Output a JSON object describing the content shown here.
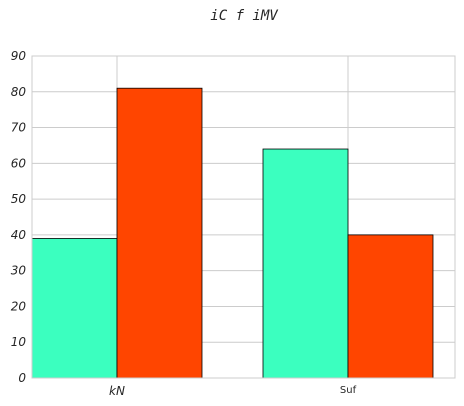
{
  "chart_data": {
    "type": "bar",
    "title": "iC f  iMV",
    "xlabel": "",
    "ylabel": "",
    "categories": [
      "kN",
      "Suf"
    ],
    "series": [
      {
        "values": [
          39,
          64
        ],
        "color": "#3bffbf"
      },
      {
        "values": [
          81,
          40
        ],
        "color": "#ff4500"
      }
    ],
    "ylim": [
      0,
      90
    ],
    "yticks": [
      0,
      10,
      20,
      30,
      40,
      50,
      60,
      70,
      80,
      90
    ],
    "grid": true
  }
}
